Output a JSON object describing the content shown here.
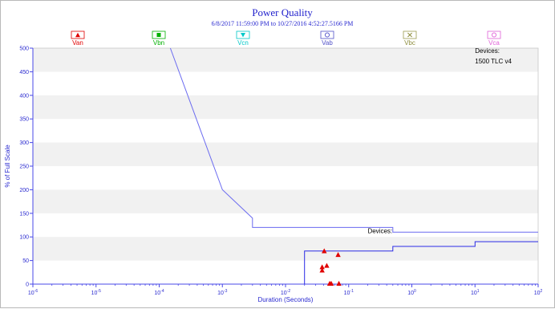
{
  "chart_data": {
    "type": "scatter",
    "title": "Power Quality",
    "subtitle": "6/8/2017 11:59:00 PM to 10/27/2016 4:52:27.5166 PM",
    "xlabel": "Duration (Seconds)",
    "ylabel": "% of Full Scale",
    "x_scale": "log",
    "xlim": [
      1e-06,
      100
    ],
    "ylim": [
      0,
      500
    ],
    "x_ticks": [
      {
        "value": 1e-06,
        "base": "10",
        "exp": "-6"
      },
      {
        "value": 1e-05,
        "base": "10",
        "exp": "-5"
      },
      {
        "value": 0.0001,
        "base": "10",
        "exp": "-4"
      },
      {
        "value": 0.001,
        "base": "10",
        "exp": "-3"
      },
      {
        "value": 0.01,
        "base": "10",
        "exp": "-2"
      },
      {
        "value": 0.1,
        "base": "10",
        "exp": "-1"
      },
      {
        "value": 1,
        "base": "10",
        "exp": "0"
      },
      {
        "value": 10,
        "base": "10",
        "exp": "1"
      },
      {
        "value": 100,
        "base": "10",
        "exp": "2"
      }
    ],
    "y_ticks": [
      {
        "value": 0,
        "label": "0"
      },
      {
        "value": 50,
        "label": "50"
      },
      {
        "value": 100,
        "label": "100"
      },
      {
        "value": 150,
        "label": "150"
      },
      {
        "value": 200,
        "label": "200"
      },
      {
        "value": 250,
        "label": "250"
      },
      {
        "value": 300,
        "label": "300"
      },
      {
        "value": 350,
        "label": "350"
      },
      {
        "value": 400,
        "label": "400"
      },
      {
        "value": 450,
        "label": "450"
      },
      {
        "value": 500,
        "label": "500"
      }
    ],
    "grid": "horizontal bands",
    "legend_position": "top",
    "legend": [
      {
        "name": "Van",
        "marker": "triangle",
        "color": "#e00000",
        "border": "#e00000"
      },
      {
        "name": "Vbn",
        "marker": "square",
        "color": "#00b000",
        "border": "#00b000"
      },
      {
        "name": "Vcn",
        "marker": "triangle-down",
        "color": "#00c8c8",
        "border": "#00c8c8"
      },
      {
        "name": "Vab",
        "marker": "circle-open",
        "color": "#5050c8",
        "border": "#5050c8"
      },
      {
        "name": "Vbc",
        "marker": "x-open",
        "color": "#8c8c3c",
        "border": "#9c9c50"
      },
      {
        "name": "Vca",
        "marker": "circle-open",
        "color": "#e060d8",
        "border": "#e060d8"
      }
    ],
    "upper_curve": {
      "color": "#6a6af0",
      "points": [
        [
          0.00015,
          500
        ],
        [
          0.001,
          200
        ],
        [
          0.003,
          140
        ],
        [
          0.003,
          120
        ],
        [
          0.5,
          120
        ],
        [
          0.5,
          110
        ],
        [
          100,
          110
        ]
      ]
    },
    "lower_curve": {
      "color": "#2a2ae6",
      "points": [
        [
          0.02,
          0
        ],
        [
          0.02,
          70
        ],
        [
          0.5,
          70
        ],
        [
          0.5,
          80
        ],
        [
          10,
          80
        ],
        [
          10,
          90
        ],
        [
          100,
          90
        ]
      ]
    },
    "series": [
      {
        "name": "Van",
        "marker": "triangle",
        "color": "#e00000",
        "points": [
          {
            "x": 0.038,
            "y": 29
          },
          {
            "x": 0.038,
            "y": 36
          },
          {
            "x": 0.041,
            "y": 70
          },
          {
            "x": 0.045,
            "y": 39
          },
          {
            "x": 0.068,
            "y": 62
          },
          {
            "x": 0.05,
            "y": 1
          },
          {
            "x": 0.053,
            "y": 1
          },
          {
            "x": 0.07,
            "y": 1
          }
        ]
      }
    ],
    "annotations": [
      {
        "text": "Devices:",
        "x": 10,
        "y": 490
      },
      {
        "text": "1500 TLC v4",
        "x": 10,
        "y": 468
      },
      {
        "text": "Devices:",
        "x": 0.2,
        "y": 108
      }
    ]
  }
}
